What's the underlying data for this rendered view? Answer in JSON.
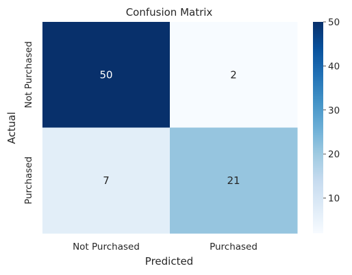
{
  "chart_data": {
    "type": "heatmap",
    "title": "Confusion Matrix",
    "xlabel": "Predicted",
    "ylabel": "Actual",
    "x_categories": [
      "Not Purchased",
      "Purchased"
    ],
    "y_categories": [
      "Not Purchased",
      "Purchased"
    ],
    "values": [
      [
        50,
        2
      ],
      [
        7,
        21
      ]
    ],
    "colormap": "Blues",
    "colorbar": {
      "min": 2,
      "max": 50,
      "ticks": [
        10,
        20,
        30,
        40,
        50
      ]
    },
    "grid": false
  }
}
